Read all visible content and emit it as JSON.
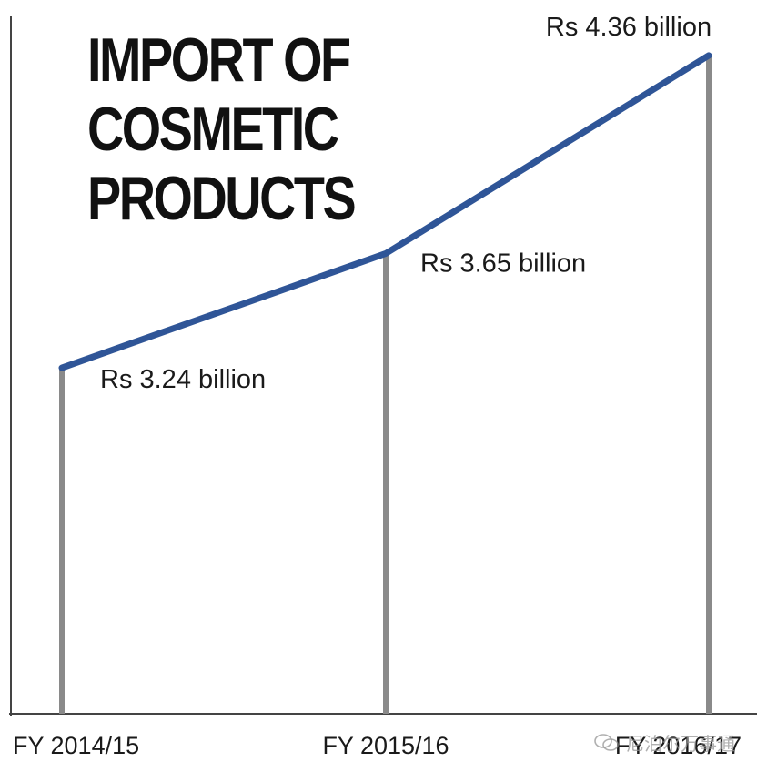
{
  "chart_data": {
    "type": "line",
    "title_lines": [
      "IMPORT OF",
      "COSMETIC",
      "PRODUCTS"
    ],
    "categories": [
      "FY 2014/15",
      "FY 2015/16",
      "FY 2016/17"
    ],
    "values": [
      3.24,
      3.65,
      4.36
    ],
    "data_labels": [
      "Rs 3.24 billion",
      "Rs 3.65 billion",
      "Rs 4.36 billion"
    ],
    "ylim": [
      2.0,
      4.5
    ],
    "line_color": "#2f5597",
    "drop_line_color": "#8a8a8a",
    "axis_color": "#444444",
    "grid": false
  },
  "watermark": {
    "text": "尼泊尔万事通",
    "icon": "wechat-icon"
  }
}
